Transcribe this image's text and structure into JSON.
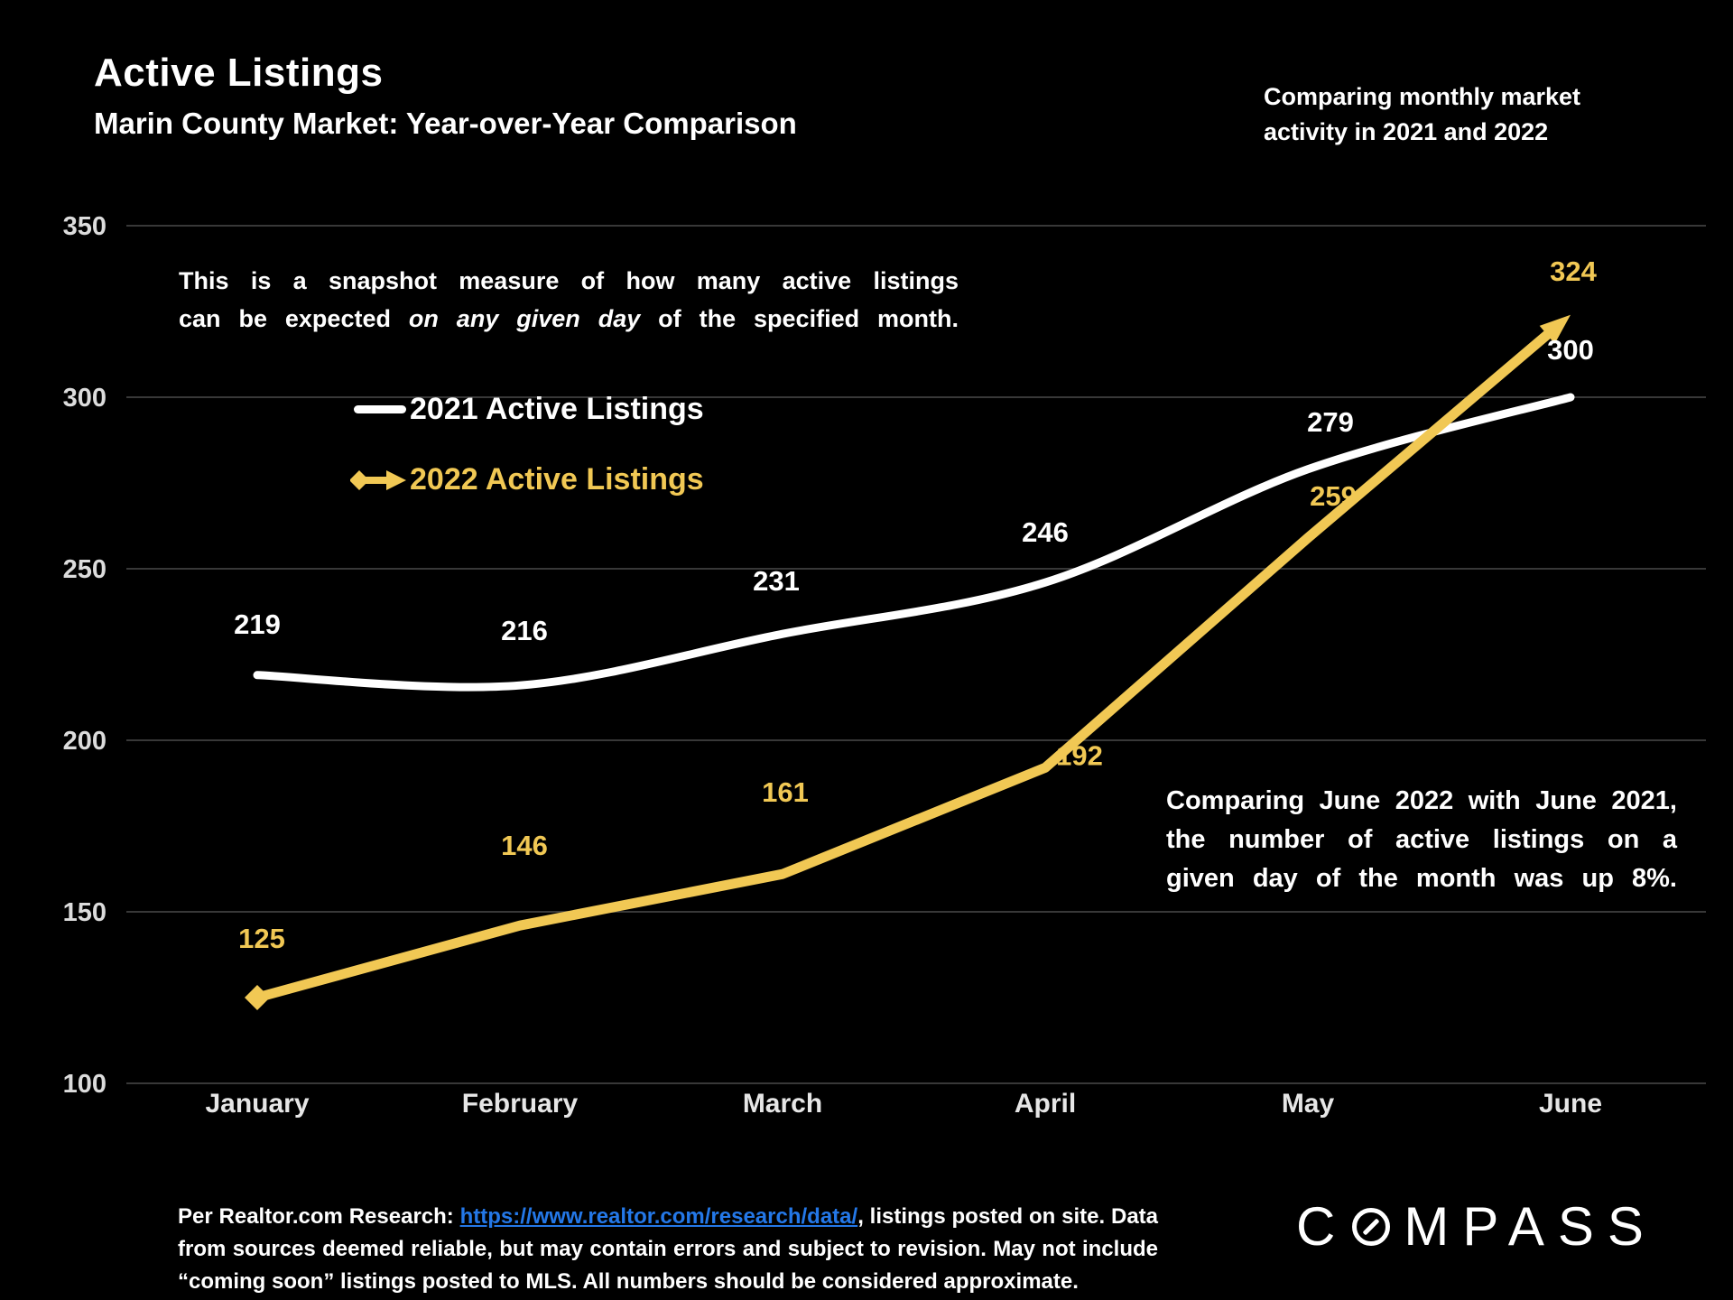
{
  "header": {
    "title": "Active Listings",
    "subtitle": "Marin County Market: Year-over-Year Comparison",
    "note_line1": "Comparing monthly market",
    "note_line2": "activity in 2021 and 2022"
  },
  "annotation_top": {
    "line1": "This is a snapshot measure of how many active listings",
    "line2_pre": "can be expected ",
    "line2_italic": "on any given day",
    "line2_post": " of the specified month."
  },
  "legend": {
    "item_2021": "2021 Active Listings",
    "item_2022": "2022 Active Listings"
  },
  "annotation_right": {
    "line1": "Comparing June 2022 with June 2021,",
    "line2": "the number of active listings on a",
    "line3": "given day of the month was up 8%."
  },
  "footer": {
    "pre": "Per Realtor.com Research: ",
    "link": "https://www.realtor.com/research/data/",
    "post": ", listings posted on site. Data from sources deemed reliable, but may contain errors and subject to revision. May not include “coming soon” listings posted to MLS. All numbers should be considered approximate."
  },
  "logo": {
    "part1": "C",
    "part2": "MPASS"
  },
  "colors": {
    "accent_yellow": "#F1C854",
    "line_white": "#FFFFFF",
    "link_blue": "#2478E8",
    "grid": "#383838",
    "background": "#000000"
  },
  "chart_data": {
    "type": "line",
    "title": "Active Listings — Marin County Market: Year-over-Year Comparison",
    "categories": [
      "January",
      "February",
      "March",
      "April",
      "May",
      "June"
    ],
    "series": [
      {
        "name": "2021 Active Listings",
        "color": "#FFFFFF",
        "values": [
          219,
          216,
          231,
          246,
          279,
          300
        ]
      },
      {
        "name": "2022 Active Listings",
        "color": "#F1C854",
        "values": [
          125,
          146,
          161,
          192,
          259,
          324
        ]
      }
    ],
    "xlabel": "",
    "ylabel": "",
    "ylim": [
      100,
      350
    ],
    "yticks": [
      350,
      300,
      250,
      200,
      150,
      100
    ],
    "grid": "horizontal",
    "legend_position": "upper-left-inside",
    "annotations": {
      "start_marker_2022": "diamond",
      "end_marker_2022": "arrow"
    }
  }
}
